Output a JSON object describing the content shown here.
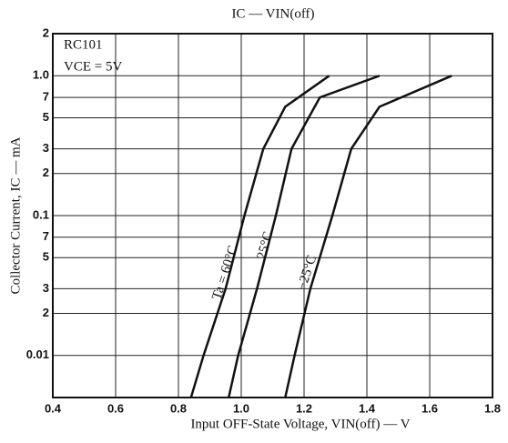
{
  "chart_data": {
    "type": "line",
    "title": "IC — VIN(off)",
    "x_label": "Input OFF-State Voltage, VIN(off) — V",
    "y_label": "Collector Current, IC — mA",
    "annotations": [
      "RC101",
      "VCE = 5V"
    ],
    "log_y": true,
    "grid": true,
    "xlim": [
      0.4,
      1.8
    ],
    "xticks": [
      0.4,
      0.6,
      0.8,
      {
        "value": 1.0,
        "label": "1.0"
      },
      1.2,
      1.4,
      1.6,
      1.8
    ],
    "ylim": [
      0.005,
      2
    ],
    "yticks": [
      2,
      {
        "value": 1,
        "label": "1.0"
      },
      {
        "value": 0.7,
        "label": "7"
      },
      {
        "value": 0.5,
        "label": "5"
      },
      {
        "value": 0.3,
        "label": "3"
      },
      {
        "value": 0.2,
        "label": "2"
      },
      0.1,
      {
        "value": 0.07,
        "label": "7"
      },
      {
        "value": 0.05,
        "label": "5"
      },
      {
        "value": 0.03,
        "label": "3"
      },
      {
        "value": 0.02,
        "label": "2"
      },
      0.01
    ],
    "series": [
      {
        "name": "Ta = 60°C",
        "color": "#111111",
        "x": [
          0.84,
          0.88,
          0.95,
          1.01,
          1.07,
          1.14,
          1.28
        ],
        "values": [
          0.005,
          0.01,
          0.03,
          0.1,
          0.3,
          0.6,
          1.0
        ]
      },
      {
        "name": "25°C",
        "color": "#111111",
        "x": [
          0.96,
          0.99,
          1.05,
          1.11,
          1.16,
          1.25,
          1.44
        ],
        "values": [
          0.005,
          0.01,
          0.03,
          0.1,
          0.3,
          0.7,
          1.0
        ]
      },
      {
        "name": "−25°C",
        "color": "#111111",
        "x": [
          1.14,
          1.17,
          1.22,
          1.29,
          1.35,
          1.44,
          1.67
        ],
        "values": [
          0.005,
          0.01,
          0.03,
          0.1,
          0.3,
          0.6,
          1.0
        ]
      }
    ]
  }
}
